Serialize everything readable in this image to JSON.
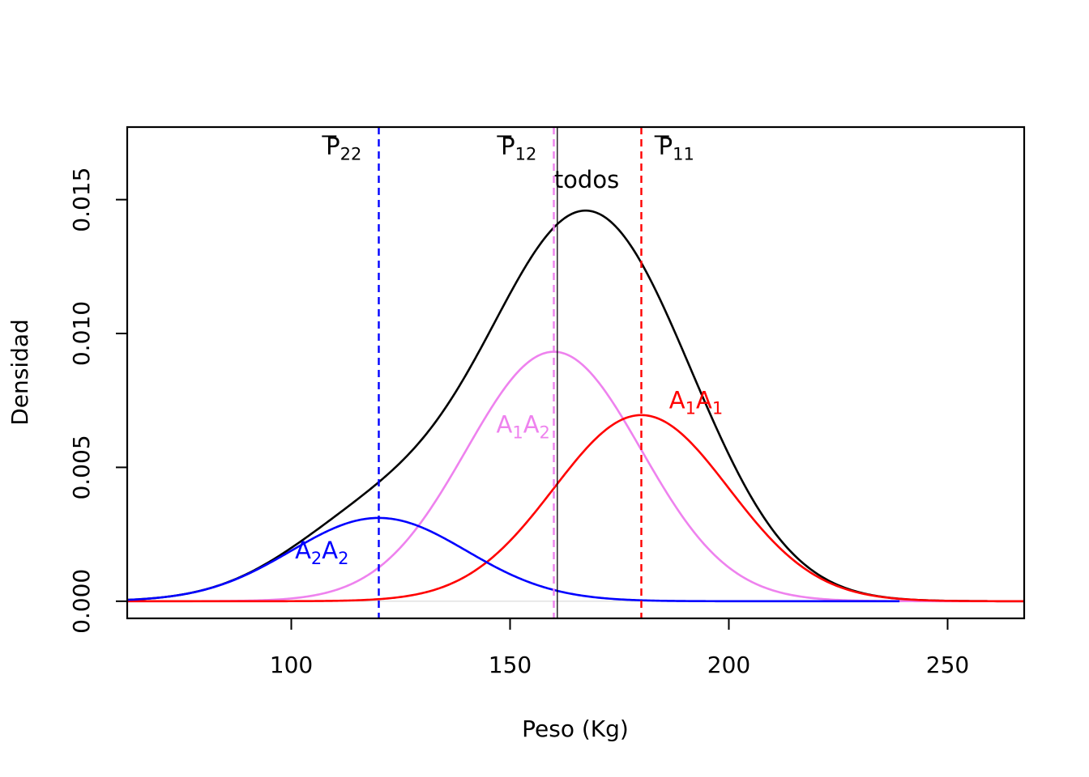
{
  "chart_data": {
    "type": "line",
    "xlabel": "Peso (Kg)",
    "ylabel": "Densidad",
    "xlim": [
      62.5,
      267.5
    ],
    "ylim": [
      -0.00064,
      0.01771
    ],
    "xticks": [
      100,
      150,
      200,
      250
    ],
    "xtick_labels": [
      "100",
      "150",
      "200",
      "250"
    ],
    "yticks": [
      0,
      0.005,
      0.01,
      0.015
    ],
    "ytick_labels": [
      "0.000",
      "0.005",
      "0.010",
      "0.015"
    ],
    "series": [
      {
        "name": "todos",
        "color": "#000000",
        "kind": "mixture",
        "x_range": [
          62.5,
          267.5
        ],
        "points": [
          [
            62.5,
            8e-05
          ],
          [
            100,
            0.0019
          ],
          [
            120,
            0.0046
          ],
          [
            140,
            0.0084
          ],
          [
            160,
            0.0141
          ],
          [
            167.5,
            0.01476
          ],
          [
            180,
            0.0127
          ],
          [
            200,
            0.0053
          ],
          [
            220,
            0.0011
          ],
          [
            267.5,
            0.0
          ]
        ]
      },
      {
        "name": "A1A2",
        "color": "#ee82ee",
        "kind": "normal",
        "mean": 160,
        "sd": 20,
        "weight": 0.46715,
        "x_range": [
          62.5,
          267.5
        ],
        "peak": [
          160,
          0.00932
        ]
      },
      {
        "name": "A1A1",
        "color": "#ff0000",
        "kind": "normal",
        "mean": 180,
        "sd": 20,
        "weight": 0.34853,
        "x_range": [
          62.5,
          267.5
        ],
        "peak": [
          180,
          0.00695
        ]
      },
      {
        "name": "A2A2",
        "color": "#0000ff",
        "kind": "normal",
        "mean": 120,
        "sd": 20,
        "weight": 0.15596,
        "x_range": [
          62.5,
          239
        ],
        "peak": [
          120,
          0.00311
        ]
      }
    ],
    "vlines": [
      {
        "x": 120,
        "color": "#0000ff",
        "style": "dashed",
        "label": "P̄22"
      },
      {
        "x": 160,
        "color": "#ee82ee",
        "style": "dashed",
        "label": "P̄12"
      },
      {
        "x": 160.8,
        "color": "#000000",
        "style": "solid",
        "label": "todos"
      },
      {
        "x": 180,
        "color": "#ff0000",
        "style": "dashed",
        "label": "P̄11"
      }
    ],
    "annotations": [
      {
        "text": "todos",
        "base": "todos",
        "sub": "",
        "x": 167.5,
        "y": 0.01545,
        "color": "#000000"
      },
      {
        "text": "A1A2",
        "base": "A",
        "sub": "1",
        "base2": "A",
        "sub2": "2",
        "x": 153,
        "y": 0.0063,
        "color": "#ee82ee"
      },
      {
        "text": "A1A1",
        "base": "A",
        "sub": "1",
        "base2": "A",
        "sub2": "1",
        "x": 192.5,
        "y": 0.0072,
        "color": "#ff0000"
      },
      {
        "text": "A2A2",
        "base": "A",
        "sub": "2",
        "base2": "A",
        "sub2": "2",
        "x": 107,
        "y": 0.0016,
        "color": "#0000ff"
      },
      {
        "text": "P̄22",
        "base": "P",
        "sub": "22",
        "x": 112,
        "y": 0.0167,
        "color": "#000000"
      },
      {
        "text": "P̄12",
        "base": "P",
        "sub": "12",
        "x": 152,
        "y": 0.0167,
        "color": "#000000"
      },
      {
        "text": "P̄11",
        "base": "P",
        "sub": "11",
        "x": 188,
        "y": 0.0167,
        "color": "#000000"
      }
    ],
    "grid": false,
    "legend": "none"
  }
}
